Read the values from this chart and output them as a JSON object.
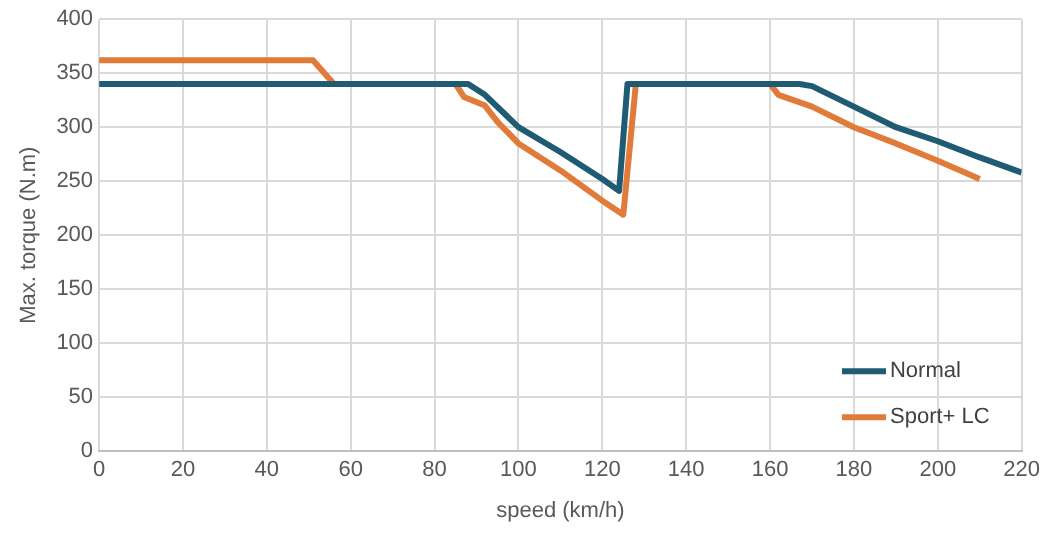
{
  "chart_data": {
    "type": "line",
    "xlabel": "speed (km/h)",
    "ylabel": "Max. torque (N.m)",
    "xlim": [
      0,
      220
    ],
    "xticks": [
      0,
      20,
      40,
      60,
      80,
      100,
      120,
      140,
      160,
      180,
      200,
      220
    ],
    "ylim": [
      0,
      400
    ],
    "yticks": [
      0,
      50,
      100,
      150,
      200,
      250,
      300,
      350,
      400
    ],
    "grid": true,
    "legend": "bottom right",
    "marker": "none",
    "line_style": "solid",
    "series": [
      {
        "name": "Normal",
        "color": "#1f5c74",
        "x": [
          0,
          88,
          92,
          100,
          110,
          120,
          124,
          126,
          167,
          170,
          180,
          190,
          200,
          210,
          220
        ],
        "values": [
          340,
          340,
          330,
          300,
          277,
          252,
          241,
          340,
          340,
          338,
          319,
          300,
          287,
          272,
          258
        ]
      },
      {
        "name": "Sport+ LC",
        "color": "#e07b39",
        "x": [
          0,
          51,
          56,
          85,
          87,
          92,
          95,
          100,
          110,
          120,
          125,
          128,
          160,
          162,
          170,
          180,
          190,
          200,
          210
        ],
        "values": [
          362,
          362,
          340,
          340,
          328,
          320,
          305,
          285,
          260,
          232,
          219,
          340,
          340,
          330,
          319,
          300,
          285,
          269,
          252
        ]
      }
    ]
  }
}
